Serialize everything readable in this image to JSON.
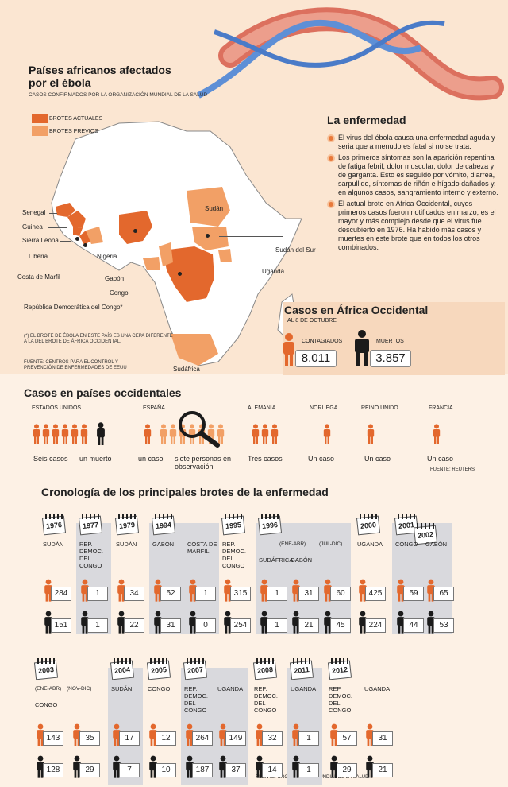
{
  "map": {
    "title": "Países africanos afectados por el ébola",
    "subtitle": "CASOS CONFIRMADOS POR LA ORGANIZACIÓN MUNDIAL DE LA SALUD",
    "legend": [
      {
        "label": "BROTES ACTUALES",
        "color": "#e3682d"
      },
      {
        "label": "BROTES PREVIOS",
        "color": "#f2a066"
      }
    ],
    "countries": {
      "senegal": "Senegal",
      "guinea": "Guinea",
      "sierra": "Sierra Leona",
      "liberia": "Liberia",
      "costa": "Costa de Marfil",
      "nigeria": "Nigeria",
      "gabon": "Gabón",
      "congo": "Congo",
      "rdc": "República Democrática del Congo*",
      "sudan": "Sudán",
      "sudan_sur": "Sudán del Sur",
      "uganda": "Uganda",
      "sudafrica": "Sudáfrica"
    },
    "note": "(*) EL BROTE DE ÉBOLA EN ESTE PAÍS ES UNA CEPA DIFERENTE A LA DEL BROTE DE ÁFRICA OCCIDENTAL.",
    "source": "FUENTE: CENTROS PARA EL CONTROL Y PREVENCIÓN DE ENFERMEDADES DE EEUU"
  },
  "disease": {
    "title": "La enfermedad",
    "bullets": [
      "El virus del ébola causa una enfermedad aguda y seria que a menudo es fatal si no se trata.",
      "Los primeros síntomas son la aparición repentina de fatiga febril, dolor muscular, dolor de cabeza y de garganta. Esto es seguido por vómito, diarrea, sarpullido, síntomas de riñón e hígado dañados y, en algunos casos, sangramiento interno y externo.",
      "El actual brote en África Occidental, cuyos primeros casos fueron notificados en marzo, es el mayor y más complejo desde que el virus fue descubierto en 1976. Ha habido más casos y muertes en este brote que en todos los otros combinados."
    ]
  },
  "west_africa": {
    "title": "Casos en África Occidental",
    "date": "AL 8 DE OCTUBRE",
    "contagiados_label": "CONTAGIADOS",
    "contagiados": "8.011",
    "muertos_label": "MUERTOS",
    "muertos": "3.857"
  },
  "western": {
    "title": "Casos en países occidentales",
    "source": "FUENTE: REUTERS",
    "countries": [
      {
        "name": "ESTADOS UNIDOS",
        "cases": "Seis casos",
        "deaths": "un muerto"
      },
      {
        "name": "ESPAÑA",
        "cases": "un caso",
        "obs": "siete personas en observación"
      },
      {
        "name": "ALEMANIA",
        "cases": "Tres casos"
      },
      {
        "name": "NORUEGA",
        "cases": "Un caso"
      },
      {
        "name": "REINO UNIDO",
        "cases": "Un caso"
      },
      {
        "name": "FRANCIA",
        "cases": "Un caso"
      }
    ]
  },
  "chronology": {
    "title": "Cronología de los principales brotes de la enfermedad",
    "source": "FUENTE: ORGANIZACIÓN MUNDIAL DE LA SALUD",
    "row1": [
      {
        "year": "1976",
        "entries": [
          {
            "country": "SUDÁN",
            "cases": "284",
            "deaths": "151"
          }
        ]
      },
      {
        "year": "1977",
        "entries": [
          {
            "country": "REP. DEMOC. DEL CONGO",
            "cases": "1",
            "deaths": "1"
          }
        ]
      },
      {
        "year": "1979",
        "entries": [
          {
            "country": "SUDÁN",
            "cases": "34",
            "deaths": "22"
          }
        ]
      },
      {
        "year": "1994",
        "entries": [
          {
            "country": "GABÓN",
            "cases": "52",
            "deaths": "31"
          },
          {
            "country": "COSTA DE MARFIL",
            "cases": "1",
            "deaths": "0"
          }
        ]
      },
      {
        "year": "1995",
        "entries": [
          {
            "country": "REP. DEMOC. DEL CONGO",
            "cases": "315",
            "deaths": "254"
          }
        ]
      },
      {
        "year": "1996",
        "sub1": "(ENE-ABR)",
        "sub2": "(JUL-DIC)",
        "entries": [
          {
            "country": "SUDÁFRICA",
            "cases": "1",
            "deaths": "1"
          },
          {
            "country": "GABÓN",
            "cases": "31",
            "deaths": "21"
          },
          {
            "country": "",
            "cases": "60",
            "deaths": "45"
          }
        ]
      },
      {
        "year": "2000",
        "entries": [
          {
            "country": "UGANDA",
            "cases": "425",
            "deaths": "224"
          }
        ]
      },
      {
        "year": "2001",
        "year2": "2002",
        "entries": [
          {
            "country": "CONGO",
            "cases": "59",
            "deaths": "44"
          },
          {
            "country": "GABÓN",
            "cases": "65",
            "deaths": "53"
          }
        ]
      }
    ],
    "row2": [
      {
        "year": "2003",
        "sub1": "(ENE-ABR)",
        "sub2": "(NOV-DIC)",
        "entries": [
          {
            "country": "CONGO",
            "cases": "143",
            "deaths": "128"
          },
          {
            "country": "",
            "cases": "35",
            "deaths": "29"
          }
        ]
      },
      {
        "year": "2004",
        "entries": [
          {
            "country": "SUDÁN",
            "cases": "17",
            "deaths": "7"
          }
        ]
      },
      {
        "year": "2005",
        "entries": [
          {
            "country": "CONGO",
            "cases": "12",
            "deaths": "10"
          }
        ]
      },
      {
        "year": "2007",
        "entries": [
          {
            "country": "REP. DEMOC. DEL CONGO",
            "cases": "264",
            "deaths": "187"
          },
          {
            "country": "UGANDA",
            "cases": "149",
            "deaths": "37"
          }
        ]
      },
      {
        "year": "2008",
        "entries": [
          {
            "country": "REP. DEMOC. DEL CONGO",
            "cases": "32",
            "deaths": "14"
          }
        ]
      },
      {
        "year": "2011",
        "entries": [
          {
            "country": "UGANDA",
            "cases": "1",
            "deaths": "1"
          }
        ]
      },
      {
        "year": "2012",
        "entries": [
          {
            "country": "REP. DEMOC. DEL CONGO",
            "cases": "57",
            "deaths": "29"
          },
          {
            "country": "UGANDA",
            "cases": "31",
            "deaths": "21"
          }
        ]
      }
    ]
  },
  "colors": {
    "orange": "#e3682d",
    "light_orange": "#f2a066",
    "grey": "#d9d9dd"
  }
}
